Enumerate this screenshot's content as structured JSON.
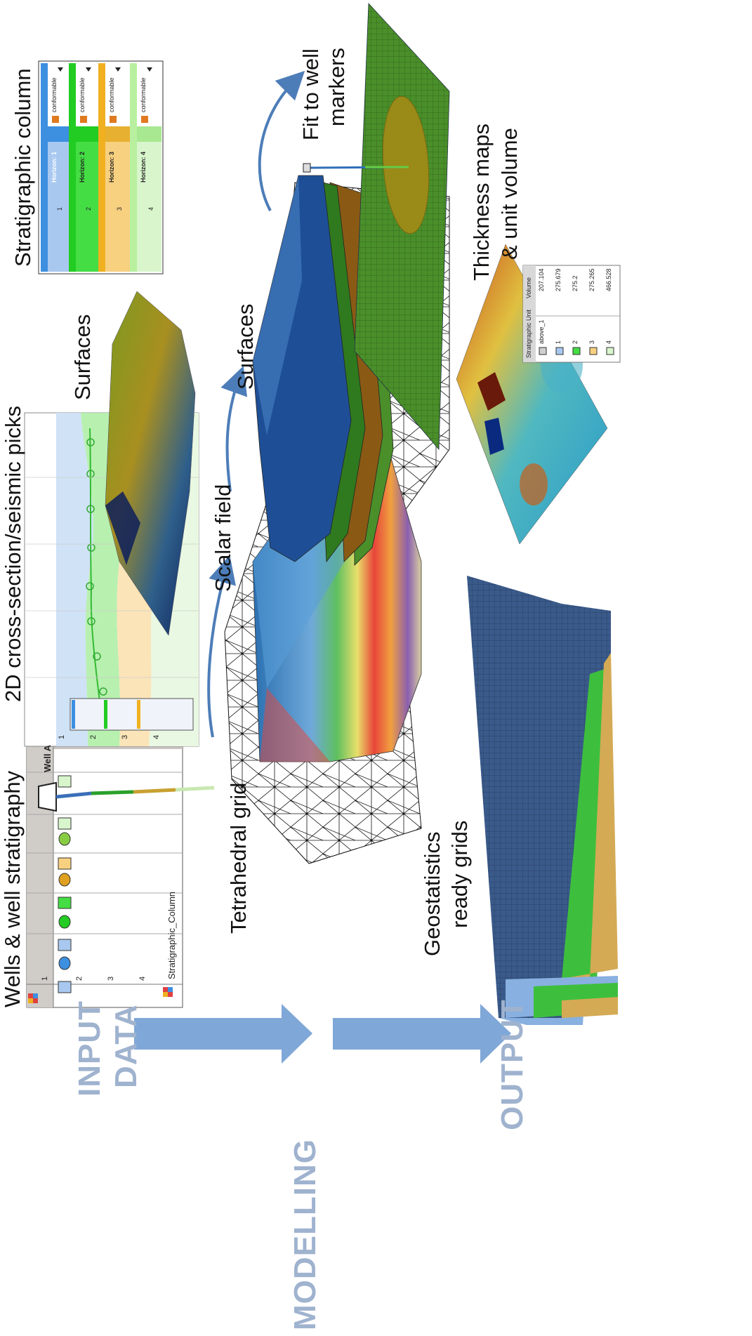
{
  "flow": {
    "stages": [
      "INPUT\nDATA",
      "MODELLING",
      "OUTPUT"
    ],
    "stage_lines": {
      "input": [
        "INPUT",
        "DATA"
      ],
      "modelling": "MODELLING",
      "output": "OUTPUT"
    }
  },
  "labels": {
    "wells": "Wells & well stratigraphy",
    "cross_section": "2D cross-section/seismic  picks",
    "surfaces_top": "Surfaces",
    "strat_column": "Stratigraphic column",
    "tetra_grid": "Tetrahedral grid",
    "scalar_field": "Scalar field",
    "surfaces_mid": "Surfaces",
    "fit_wells": [
      "Fit to well",
      "markers"
    ],
    "geostat": [
      "Geostatistics",
      "ready grids"
    ],
    "thickness": [
      "Thickness maps",
      "& unit volume"
    ]
  },
  "well_table": {
    "header": "Well A",
    "rows": [
      "1",
      "2",
      "3",
      "4"
    ],
    "units": [
      "1",
      "2",
      "3",
      "4"
    ],
    "column_name": "Stratigraphic_Column"
  },
  "strat_column": {
    "horizons": [
      "Horizon: 1",
      "Horizon: 2",
      "Horizon: 3",
      "Horizon: 4"
    ],
    "units": [
      "1",
      "2",
      "3",
      "4"
    ],
    "relation": "conformable",
    "colors": [
      "#3d8fe0",
      "#22cc22",
      "#f0b020",
      "#b8f0a0"
    ],
    "fill_colors": [
      "#a8c8f0",
      "#44dd44",
      "#f7d080",
      "#d8f5cc"
    ]
  },
  "volume_table": {
    "headers": [
      "Stratigraphic Unit",
      "Volume"
    ],
    "rows": [
      {
        "unit": "above_1",
        "volume": "207.104"
      },
      {
        "unit": "1",
        "volume": "275.679"
      },
      {
        "unit": "2",
        "volume": "275.2"
      },
      {
        "unit": "3",
        "volume": "275.265"
      },
      {
        "unit": "4",
        "volume": "466.528"
      }
    ]
  },
  "colors": {
    "arrow": "#7fa7d7",
    "flow_text": "#9fb3cf",
    "layer_blue": "#1e4f96",
    "layer_green": "#2f7a1e",
    "layer_brown": "#8a5a14",
    "layer_lightgreen": "#4a8f2a"
  }
}
